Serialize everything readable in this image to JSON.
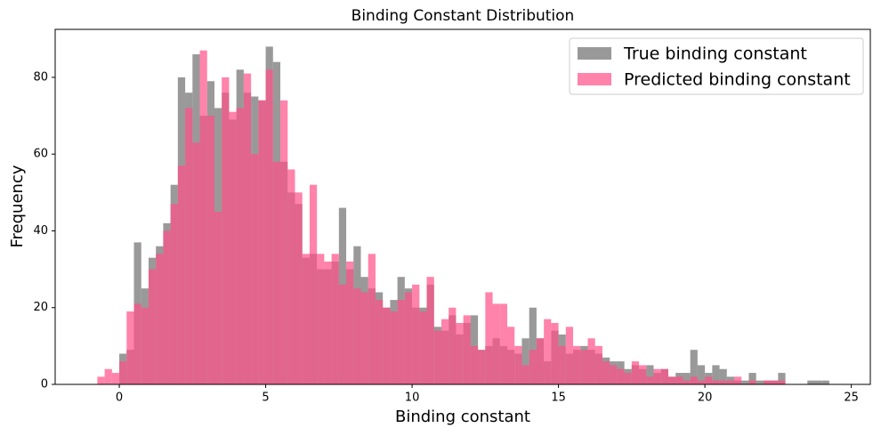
{
  "chart_data": {
    "type": "histogram",
    "title": "Binding Constant Distribution",
    "x_label": "Binding constant",
    "y_label": "Frequency",
    "xlim": [
      -2.19,
      25.65
    ],
    "ylim": [
      0,
      92.5
    ],
    "xticks": [
      0,
      5,
      10,
      15,
      20,
      25
    ],
    "yticks": [
      0,
      20,
      40,
      60,
      80
    ],
    "legend_position": "upper right",
    "series": [
      {
        "name": "True binding constant",
        "color": "#808080",
        "opacity": 0.8,
        "bins": [
          0,
          0.25,
          0.5,
          0.75,
          1,
          1.25,
          1.5,
          1.75,
          2,
          2.25,
          2.5,
          2.75,
          3,
          3.25,
          3.5,
          3.75,
          4,
          4.25,
          4.5,
          4.75,
          5,
          5.25,
          5.5,
          5.75,
          6,
          6.25,
          6.5,
          6.75,
          7,
          7.25,
          7.5,
          7.75,
          8,
          8.25,
          8.5,
          8.75,
          9,
          9.25,
          9.5,
          9.75,
          10,
          10.25,
          10.5,
          10.75,
          11,
          11.25,
          11.5,
          11.75,
          12,
          12.25,
          12.5,
          12.75,
          13,
          13.25,
          13.5,
          13.75,
          14,
          14.25,
          14.5,
          14.75,
          15,
          15.25,
          15.5,
          15.75,
          16,
          16.25,
          16.5,
          16.75,
          17,
          17.25,
          17.5,
          17.75,
          18,
          18.25,
          18.5,
          18.75,
          19,
          19.25,
          19.5,
          19.75,
          20,
          20.25,
          20.5,
          20.75,
          21,
          21.25,
          21.5,
          21.75,
          22,
          22.25,
          22.5,
          22.75,
          23,
          23.25,
          23.5,
          23.75,
          24,
          24.25
        ],
        "values": [
          8,
          9,
          37,
          25,
          33,
          36,
          42,
          52,
          80,
          76,
          86,
          70,
          79,
          72,
          76,
          69,
          82,
          76,
          75,
          74,
          88,
          84,
          58,
          50,
          47,
          33,
          34,
          30,
          30,
          32,
          46,
          30,
          36,
          28,
          25,
          24,
          20,
          22,
          28,
          25,
          20,
          20,
          26,
          15,
          14,
          18,
          13,
          16,
          18,
          9,
          10,
          12,
          10,
          9,
          8,
          12,
          20,
          12,
          6,
          14,
          13,
          8,
          9,
          10,
          9,
          8,
          7,
          6,
          6,
          4,
          5,
          4,
          5,
          3,
          4,
          2,
          3,
          3,
          9,
          5,
          3,
          5,
          4,
          2,
          1,
          1,
          3,
          1,
          1,
          1,
          3,
          0,
          0,
          0,
          1,
          1,
          1
        ]
      },
      {
        "name": "Predicted binding constant",
        "color": "#ff4f86",
        "opacity": 0.7,
        "bins": [
          -0.75,
          -0.5,
          -0.25,
          0,
          0.25,
          0.5,
          0.75,
          1,
          1.25,
          1.5,
          1.75,
          2,
          2.25,
          2.5,
          2.75,
          3,
          3.25,
          3.5,
          3.75,
          4,
          4.25,
          4.5,
          4.75,
          5,
          5.25,
          5.5,
          5.75,
          6,
          6.25,
          6.5,
          6.75,
          7,
          7.25,
          7.5,
          7.75,
          8,
          8.25,
          8.5,
          8.75,
          9,
          9.25,
          9.5,
          9.75,
          10,
          10.25,
          10.5,
          10.75,
          11,
          11.25,
          11.5,
          11.75,
          12,
          12.25,
          12.5,
          12.75,
          13,
          13.25,
          13.5,
          13.75,
          14,
          14.25,
          14.5,
          14.75,
          15,
          15.25,
          15.5,
          15.75,
          16,
          16.25,
          16.5,
          16.75,
          17,
          17.25,
          17.5,
          17.75,
          18,
          18.25,
          18.5,
          18.75,
          19,
          19.25,
          19.5,
          19.75,
          20,
          20.25,
          20.5,
          20.75,
          21,
          21.25,
          21.5,
          21.75,
          22,
          22.25,
          22.5,
          22.75
        ],
        "values": [
          2,
          4,
          3,
          6,
          19,
          21,
          20,
          30,
          34,
          40,
          47,
          57,
          72,
          63,
          87,
          70,
          45,
          80,
          71,
          72,
          81,
          60,
          74,
          82,
          58,
          74,
          56,
          50,
          34,
          52,
          34,
          32,
          34,
          26,
          32,
          25,
          24,
          34,
          22,
          20,
          19,
          22,
          24,
          26,
          19,
          28,
          14,
          17,
          20,
          16,
          18,
          10,
          9,
          24,
          21,
          21,
          15,
          10,
          5,
          9,
          12,
          17,
          16,
          10,
          15,
          10,
          9,
          12,
          10,
          6,
          5,
          4,
          3,
          6,
          5,
          2,
          4,
          4,
          2,
          2,
          1,
          2,
          1,
          2,
          1,
          1,
          1,
          2,
          0,
          1,
          0,
          1,
          1,
          1
        ]
      }
    ]
  }
}
